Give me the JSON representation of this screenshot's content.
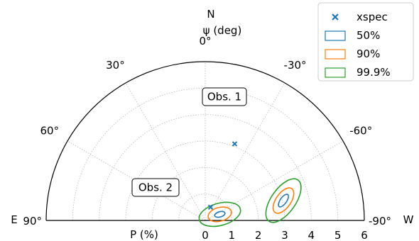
{
  "chart_data": {
    "type": "polar-contour",
    "orientation": {
      "north": "N",
      "east": "E",
      "west": "W"
    },
    "angle_label": "ψ (deg)",
    "radial_label": "P (%)",
    "angle_range_deg": [
      -90,
      90
    ],
    "radial_range": [
      0,
      6
    ],
    "grid": true,
    "angle_ticks": [
      {
        "value": -90,
        "label": "-90°"
      },
      {
        "value": -60,
        "label": "-60°"
      },
      {
        "value": -30,
        "label": "-30°"
      },
      {
        "value": 0,
        "label": "0°"
      },
      {
        "value": 30,
        "label": "30°"
      },
      {
        "value": 60,
        "label": "60°"
      },
      {
        "value": 90,
        "label": "90°"
      }
    ],
    "radial_ticks": [
      {
        "value": 0,
        "label": "0"
      },
      {
        "value": 1,
        "label": "1"
      },
      {
        "value": 2,
        "label": "2"
      },
      {
        "value": 3,
        "label": "3"
      },
      {
        "value": 4,
        "label": "4"
      },
      {
        "value": 5,
        "label": "5"
      },
      {
        "value": 6,
        "label": "6"
      }
    ],
    "legend": {
      "placement": "top-right",
      "entries": [
        {
          "label": "xspec",
          "kind": "marker",
          "color": "#1f77b4"
        },
        {
          "label": "50%",
          "kind": "contour",
          "color": "#1f77b4"
        },
        {
          "label": "90%",
          "kind": "contour",
          "color": "#ff7f0e"
        },
        {
          "label": "99.9%",
          "kind": "contour",
          "color": "#2ca02c"
        }
      ]
    },
    "observations": [
      {
        "label": "Obs. 1",
        "best_fit": {
          "P": 3.1,
          "psi": -21
        },
        "contours": [
          {
            "level": "50%",
            "color": "#1f77b4",
            "center": [
              2.95,
              0.75
            ],
            "semi_major": 0.28,
            "semi_minor": 0.12,
            "rotation_deg": -55
          },
          {
            "level": "90%",
            "color": "#ff7f0e",
            "center": [
              2.95,
              0.75
            ],
            "semi_major": 0.55,
            "semi_minor": 0.28,
            "rotation_deg": -55
          },
          {
            "level": "99.9%",
            "color": "#2ca02c",
            "center": [
              2.95,
              0.75
            ],
            "semi_major": 0.95,
            "semi_minor": 0.46,
            "rotation_deg": -55
          }
        ]
      },
      {
        "label": "Obs. 2",
        "best_fit": {
          "P": 0.54,
          "psi": -22
        },
        "contours": [
          {
            "level": "50%",
            "color": "#1f77b4",
            "center": [
              0.55,
              0.23
            ],
            "semi_major": 0.2,
            "semi_minor": 0.1,
            "rotation_deg": -15
          },
          {
            "level": "90%",
            "color": "#ff7f0e",
            "center": [
              0.55,
              0.23
            ],
            "semi_major": 0.45,
            "semi_minor": 0.26,
            "rotation_deg": -15
          },
          {
            "level": "99.9%",
            "color": "#2ca02c",
            "center": [
              0.55,
              0.23
            ],
            "semi_major": 0.8,
            "semi_minor": 0.42,
            "rotation_deg": -15
          }
        ]
      }
    ]
  }
}
